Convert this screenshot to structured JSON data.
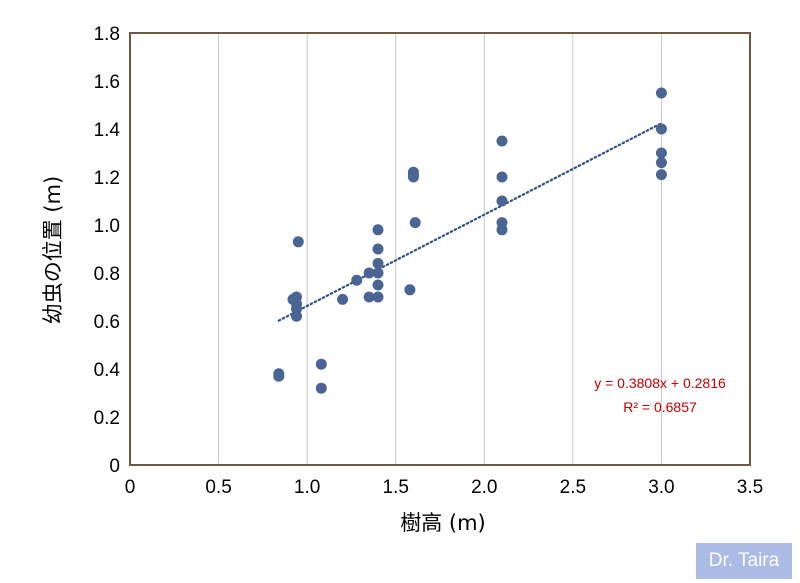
{
  "chart_data": {
    "type": "scatter",
    "xlabel": "樹高 (m)",
    "ylabel": "幼虫の位置 (m)",
    "xlim": [
      0,
      3.5
    ],
    "ylim": [
      0,
      1.8
    ],
    "x_ticks": [
      "0",
      "0.5",
      "1.0",
      "1.5",
      "2.0",
      "2.5",
      "3.0",
      "3.5"
    ],
    "y_ticks": [
      "0",
      "0.2",
      "0.4",
      "0.6",
      "0.8",
      "1.0",
      "1.2",
      "1.4",
      "1.6",
      "1.8"
    ],
    "grid": "vertical",
    "series": [
      {
        "points": [
          [
            0.84,
            0.38
          ],
          [
            0.84,
            0.37
          ],
          [
            0.92,
            0.69
          ],
          [
            0.94,
            0.7
          ],
          [
            0.94,
            0.67
          ],
          [
            0.94,
            0.65
          ],
          [
            0.94,
            0.62
          ],
          [
            0.95,
            0.93
          ],
          [
            1.08,
            0.42
          ],
          [
            1.08,
            0.32
          ],
          [
            1.2,
            0.69
          ],
          [
            1.28,
            0.77
          ],
          [
            1.35,
            0.8
          ],
          [
            1.35,
            0.7
          ],
          [
            1.4,
            0.98
          ],
          [
            1.4,
            0.9
          ],
          [
            1.4,
            0.84
          ],
          [
            1.4,
            0.8
          ],
          [
            1.4,
            0.75
          ],
          [
            1.4,
            0.7
          ],
          [
            1.58,
            0.73
          ],
          [
            1.6,
            1.22
          ],
          [
            1.6,
            1.21
          ],
          [
            1.6,
            1.2
          ],
          [
            1.61,
            1.01
          ],
          [
            2.1,
            1.35
          ],
          [
            2.1,
            1.2
          ],
          [
            2.1,
            1.1
          ],
          [
            2.1,
            1.01
          ],
          [
            2.1,
            0.98
          ],
          [
            3.0,
            1.55
          ],
          [
            3.0,
            1.4
          ],
          [
            3.0,
            1.3
          ],
          [
            3.0,
            1.26
          ],
          [
            3.0,
            1.21
          ]
        ]
      }
    ],
    "trendline": {
      "slope": 0.3808,
      "intercept": 0.2816,
      "x_range": [
        0.84,
        3.0
      ],
      "style": "dotted",
      "equation": "y = 0.3808x + 0.2816",
      "r_squared": "R² = 0.6857"
    },
    "colors": {
      "points": "#4a6594",
      "trendline": "#2e5184",
      "frame": "#6b5a3e",
      "grid": "#c8c8c8",
      "equation": "#c00000",
      "watermark_bg": "#aabce6"
    }
  },
  "watermark": "Dr. Taira"
}
